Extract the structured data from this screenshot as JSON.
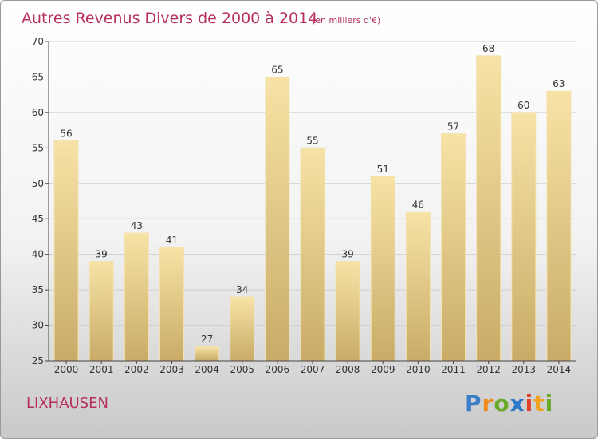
{
  "chart_data": {
    "type": "bar",
    "title": "Autres Revenus Divers de 2000 à 2014",
    "subtitle": "(en milliers d'€)",
    "categories": [
      "2000",
      "2001",
      "2002",
      "2003",
      "2004",
      "2005",
      "2006",
      "2007",
      "2008",
      "2009",
      "2010",
      "2011",
      "2012",
      "2013",
      "2014"
    ],
    "values": [
      56,
      39,
      43,
      41,
      27,
      34,
      65,
      55,
      39,
      51,
      46,
      57,
      68,
      60,
      63
    ],
    "ylim": [
      25,
      70
    ],
    "yticks": [
      25,
      30,
      35,
      40,
      45,
      50,
      55,
      60,
      65,
      70
    ],
    "xlabel": "",
    "ylabel": "",
    "grid": true,
    "bar_color": "#e9cf87"
  },
  "commune": "LIXHAUSEN",
  "logo": {
    "letters": [
      "P",
      "r",
      "o",
      "x",
      "i",
      "t",
      "i"
    ],
    "colors": [
      "#3a7ec8",
      "#f08a1a",
      "#6aaa2a",
      "#2a78c8",
      "#e0402a",
      "#f0a01a",
      "#6aaa2a"
    ]
  }
}
